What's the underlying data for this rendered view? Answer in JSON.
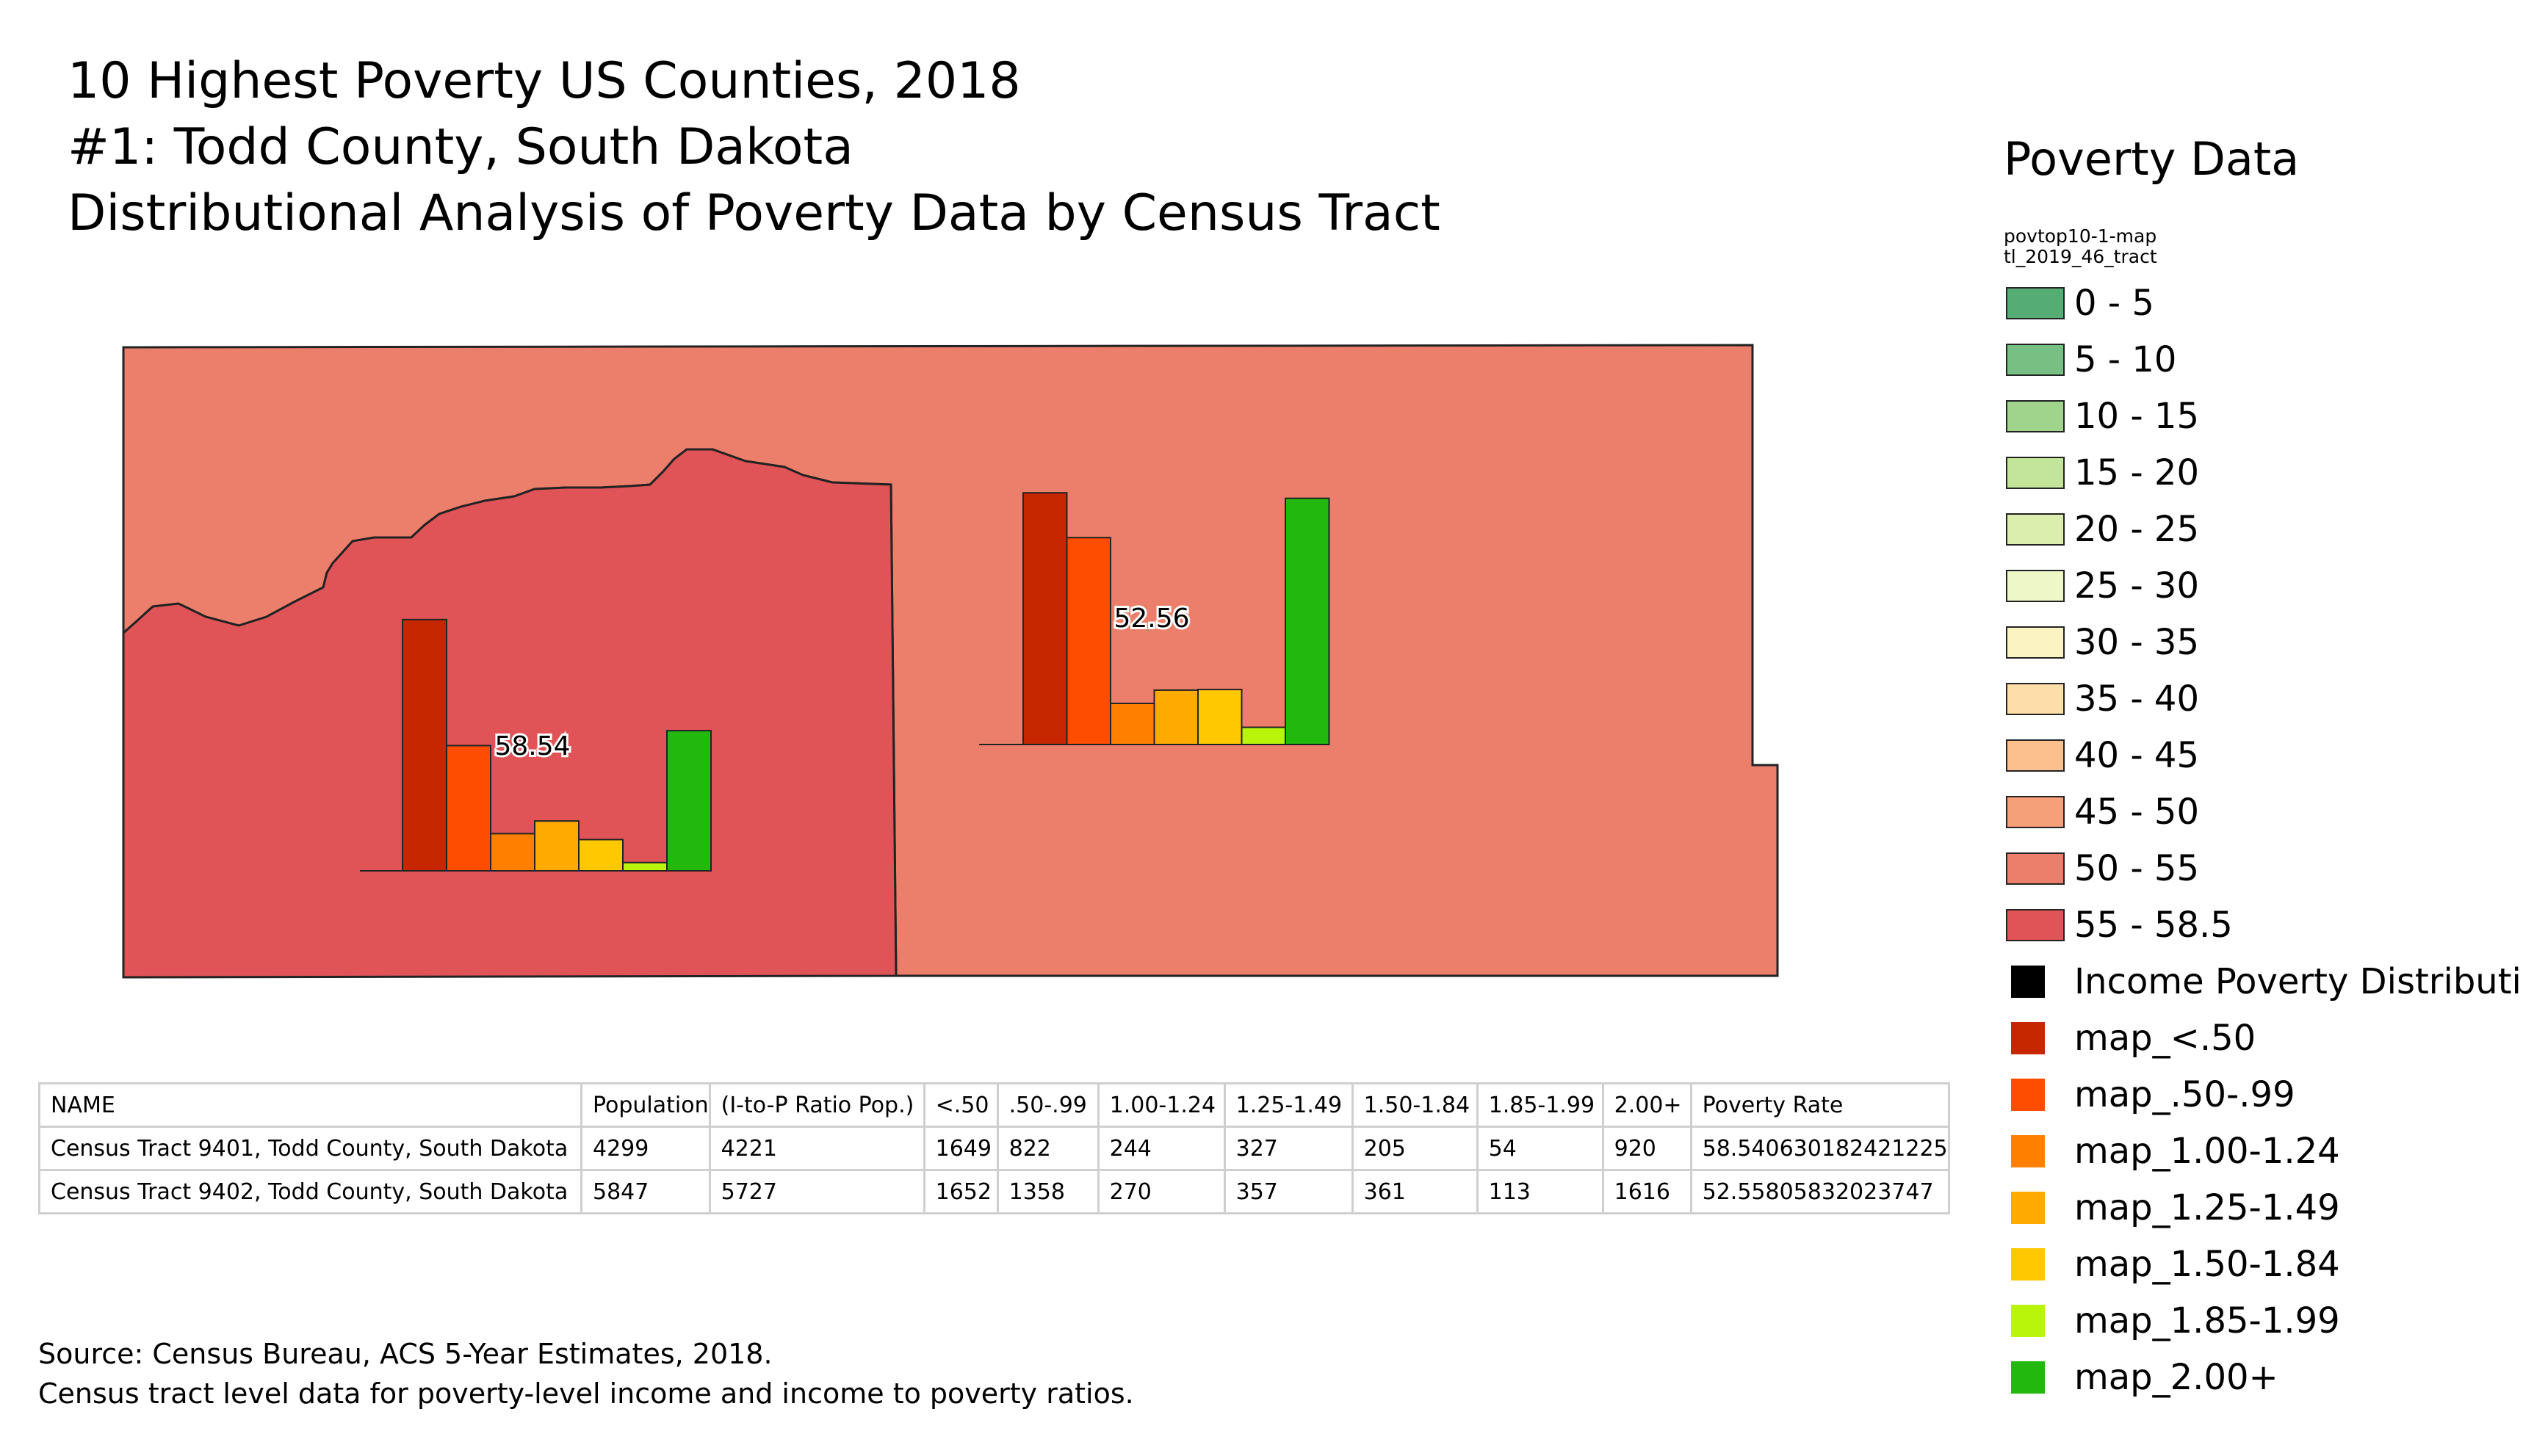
{
  "title": {
    "line1": "10 Highest Poverty US Counties, 2018",
    "line2": "#1: Todd County, South Dakota",
    "line3": "Distributional Analysis of Poverty Data by Census Tract"
  },
  "map": {
    "tracts": [
      {
        "name": "Census Tract 9401, Todd County, South Dakota",
        "label": "58.54",
        "fill": "#e05458",
        "distribution": [
          1649,
          822,
          244,
          327,
          205,
          54,
          920
        ]
      },
      {
        "name": "Census Tract 9402, Todd County, South Dakota",
        "label": "52.56",
        "fill": "#ec7f6c",
        "distribution": [
          1652,
          1358,
          270,
          357,
          361,
          113,
          1616
        ]
      }
    ]
  },
  "legend": {
    "title": "Poverty Data",
    "layer_line1": "povtop10-1-map",
    "layer_line2": "tl_2019_46_tract",
    "classes": [
      {
        "label": "0 - 5",
        "color": "#56ad74"
      },
      {
        "label": "5 - 10",
        "color": "#76c083"
      },
      {
        "label": "10 - 15",
        "color": "#a0d48d"
      },
      {
        "label": "15 - 20",
        "color": "#c2e59a"
      },
      {
        "label": "20 - 25",
        "color": "#dbeeae"
      },
      {
        "label": "25 - 30",
        "color": "#eef8c6"
      },
      {
        "label": "30 - 35",
        "color": "#fcf3c3"
      },
      {
        "label": "35 - 40",
        "color": "#fddda8"
      },
      {
        "label": "40 - 45",
        "color": "#fcc08e"
      },
      {
        "label": "45 - 50",
        "color": "#f6a07a"
      },
      {
        "label": "50 - 55",
        "color": "#ec7f6c"
      },
      {
        "label": "55 - 58.5",
        "color": "#e05458"
      }
    ],
    "distribution_header": {
      "label": "Income Poverty Distribution",
      "color": "#000000"
    },
    "distribution_items": [
      {
        "label": "map_<.50",
        "color": "#c62700"
      },
      {
        "label": "map_.50-.99",
        "color": "#ff4d00"
      },
      {
        "label": "map_1.00-1.24",
        "color": "#ff8000"
      },
      {
        "label": "map_1.25-1.49",
        "color": "#ffaa00"
      },
      {
        "label": "map_1.50-1.84",
        "color": "#ffc800"
      },
      {
        "label": "map_1.85-1.99",
        "color": "#b8f50a"
      },
      {
        "label": "map_2.00+",
        "color": "#22b80d"
      }
    ]
  },
  "table": {
    "headers": [
      "NAME",
      "Population",
      "(I-to-P Ratio Pop.)",
      "<.50",
      ".50-.99",
      "1.00-1.24",
      "1.25-1.49",
      "1.50-1.84",
      "1.85-1.99",
      "2.00+",
      "Poverty Rate"
    ],
    "rows": [
      [
        "Census Tract 9401, Todd County, South Dakota",
        "4299",
        "4221",
        "1649",
        "822",
        "244",
        "327",
        "205",
        "54",
        "920",
        "58.540630182421225"
      ],
      [
        "Census Tract 9402, Todd County, South Dakota",
        "5847",
        "5727",
        "1652",
        "1358",
        "270",
        "357",
        "361",
        "113",
        "1616",
        "52.55805832023747"
      ]
    ]
  },
  "source": {
    "line1": "Source: Census Bureau, ACS 5-Year Estimates, 2018.",
    "line2": "Census tract level data for poverty-level income and income to poverty ratios."
  }
}
